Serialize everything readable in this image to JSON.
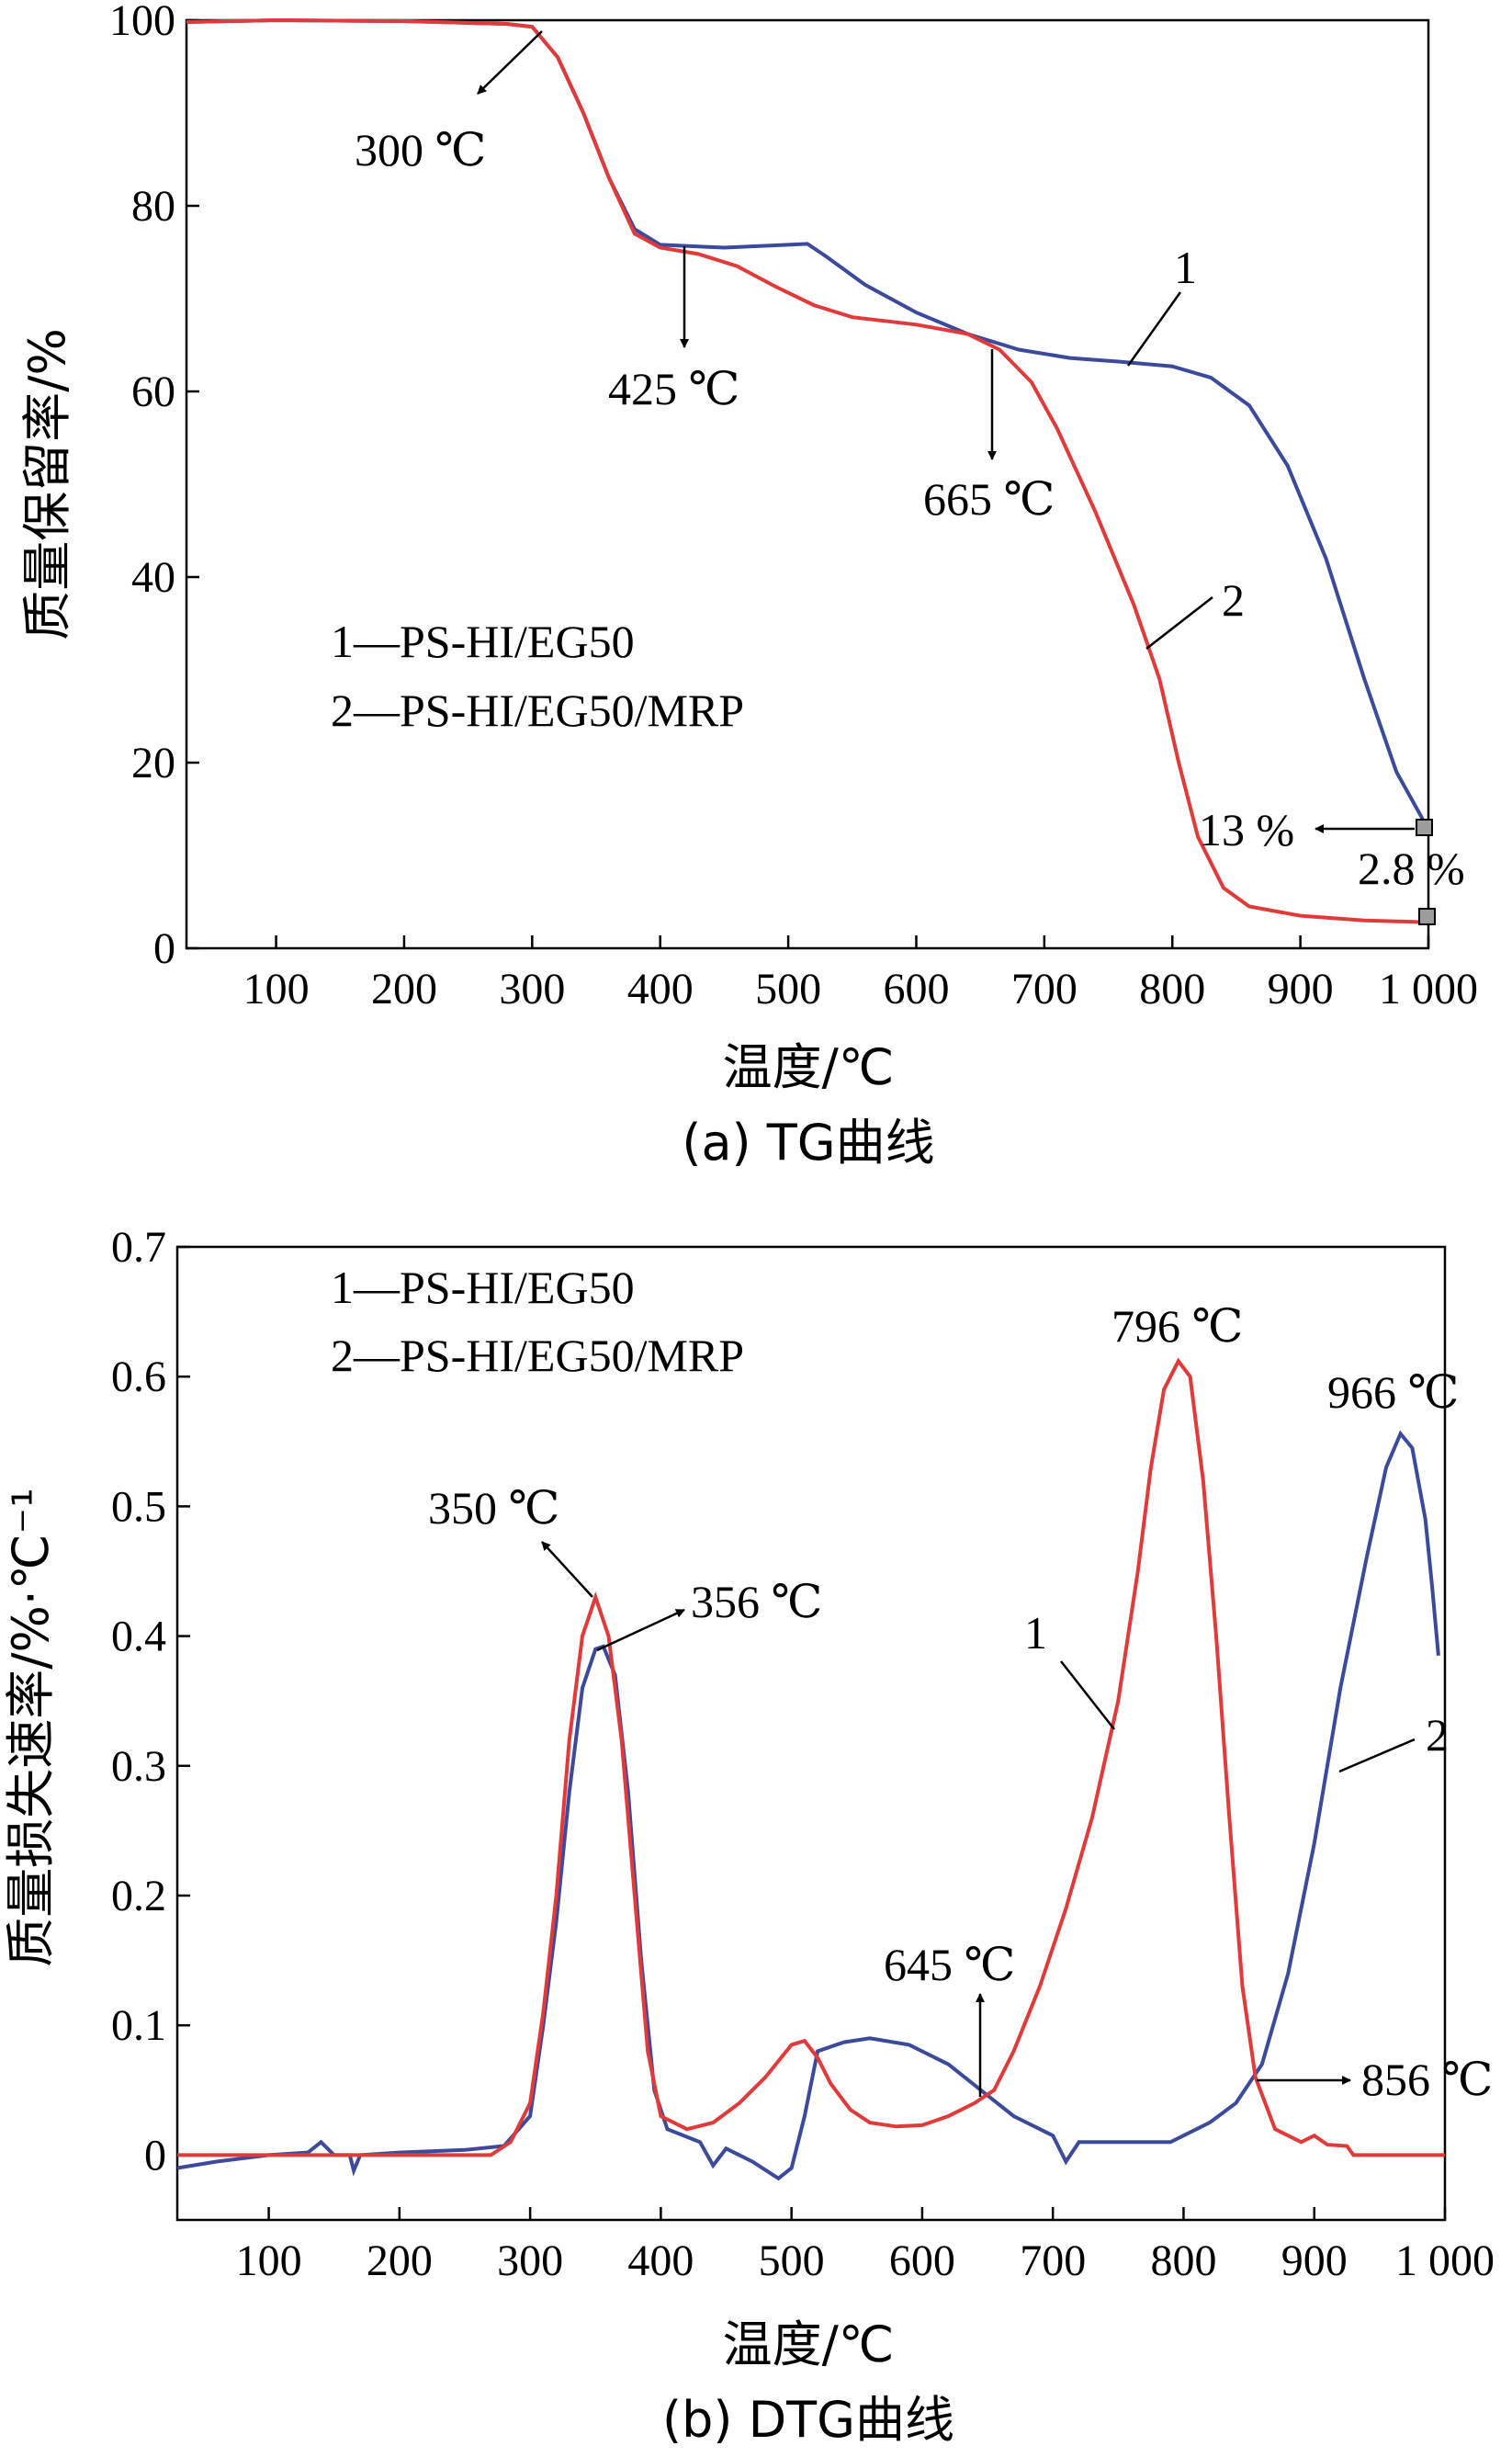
{
  "chart_data": [
    {
      "type": "line",
      "caption": "(a) TG曲线",
      "xlabel": "温度/℃",
      "ylabel": "质量保留率/%",
      "xlim": [
        30,
        1000
      ],
      "ylim": [
        0,
        100
      ],
      "xticks": [
        100,
        200,
        300,
        400,
        500,
        600,
        700,
        800,
        900,
        1000
      ],
      "xtick_labels": [
        "100",
        "200",
        "300",
        "400",
        "500",
        "600",
        "700",
        "800",
        "900",
        "1 000"
      ],
      "yticks": [
        0,
        20,
        40,
        60,
        80,
        100
      ],
      "ytick_labels": [
        "0",
        "20",
        "40",
        "60",
        "80",
        "100"
      ],
      "legend": [
        "1—PS-HI/EG50",
        "2—PS-HI/EG50/MRP"
      ],
      "colors": {
        "series1": "#3b4a9a",
        "series2": "#e03a3a"
      },
      "series": [
        {
          "label": "1",
          "points": [
            [
              30,
              99.8
            ],
            [
              100,
              100
            ],
            [
              200,
              99.9
            ],
            [
              280,
              99.6
            ],
            [
              300,
              99.3
            ],
            [
              320,
              96
            ],
            [
              340,
              90
            ],
            [
              360,
              83
            ],
            [
              380,
              77.5
            ],
            [
              400,
              75.8
            ],
            [
              450,
              75.5
            ],
            [
              500,
              75.8
            ],
            [
              515,
              75.9
            ],
            [
              530,
              74.5
            ],
            [
              560,
              71.5
            ],
            [
              600,
              68.5
            ],
            [
              640,
              66.2
            ],
            [
              680,
              64.5
            ],
            [
              720,
              63.6
            ],
            [
              760,
              63.2
            ],
            [
              800,
              62.7
            ],
            [
              830,
              61.5
            ],
            [
              860,
              58.5
            ],
            [
              890,
              52
            ],
            [
              920,
              42
            ],
            [
              950,
              29
            ],
            [
              975,
              19
            ],
            [
              1000,
              12.8
            ]
          ]
        },
        {
          "label": "2",
          "points": [
            [
              30,
              99.8
            ],
            [
              100,
              100
            ],
            [
              200,
              99.9
            ],
            [
              280,
              99.6
            ],
            [
              300,
              99.3
            ],
            [
              320,
              96
            ],
            [
              340,
              90
            ],
            [
              360,
              83
            ],
            [
              380,
              77
            ],
            [
              400,
              75.5
            ],
            [
              430,
              74.8
            ],
            [
              460,
              73.5
            ],
            [
              490,
              71.3
            ],
            [
              520,
              69.3
            ],
            [
              550,
              68
            ],
            [
              600,
              67.2
            ],
            [
              640,
              66.2
            ],
            [
              665,
              64.5
            ],
            [
              690,
              61
            ],
            [
              710,
              56
            ],
            [
              740,
              47
            ],
            [
              770,
              37
            ],
            [
              790,
              29
            ],
            [
              805,
              20
            ],
            [
              820,
              12
            ],
            [
              840,
              6.5
            ],
            [
              860,
              4.5
            ],
            [
              900,
              3.5
            ],
            [
              950,
              3
            ],
            [
              1000,
              2.8
            ]
          ]
        }
      ],
      "series_labels": [
        "1",
        "2"
      ],
      "annotations": [
        {
          "text": "300 ℃",
          "x": 300,
          "y": 99.3
        },
        {
          "text": "425 ℃",
          "x": 425,
          "y": 75.2
        },
        {
          "text": "665 ℃",
          "x": 665,
          "y": 64.5
        },
        {
          "text": "13 %",
          "x": 1000,
          "y": 13
        },
        {
          "text": "2.8 %",
          "x": 1000,
          "y": 2.8
        }
      ]
    },
    {
      "type": "line",
      "caption": "(b) DTG曲线",
      "xlabel": "温度/℃",
      "ylabel": "质量损失速率/%·℃⁻¹",
      "xlim": [
        30,
        1000
      ],
      "ylim": [
        -0.05,
        0.7
      ],
      "xticks": [
        100,
        200,
        300,
        400,
        500,
        600,
        700,
        800,
        900,
        1000
      ],
      "xtick_labels": [
        "100",
        "200",
        "300",
        "400",
        "500",
        "600",
        "700",
        "800",
        "900",
        "1 000"
      ],
      "yticks": [
        0,
        0.1,
        0.2,
        0.3,
        0.4,
        0.5,
        0.6,
        0.7
      ],
      "ytick_labels": [
        "0",
        "0.1",
        "0.2",
        "0.3",
        "0.4",
        "0.5",
        "0.6",
        "0.7"
      ],
      "legend": [
        "1—PS-HI/EG50",
        "2—PS-HI/EG50/MRP"
      ],
      "colors": {
        "red": "#e03a3a",
        "blue": "#3b4a9a"
      },
      "series": [
        {
          "label": "1",
          "color_key": "red",
          "points": [
            [
              30,
              0
            ],
            [
              100,
              0
            ],
            [
              200,
              0
            ],
            [
              270,
              0
            ],
            [
              285,
              0.01
            ],
            [
              300,
              0.04
            ],
            [
              310,
              0.11
            ],
            [
              320,
              0.2
            ],
            [
              330,
              0.32
            ],
            [
              340,
              0.4
            ],
            [
              350,
              0.43
            ],
            [
              360,
              0.4
            ],
            [
              370,
              0.32
            ],
            [
              380,
              0.2
            ],
            [
              390,
              0.08
            ],
            [
              400,
              0.03
            ],
            [
              420,
              0.02
            ],
            [
              440,
              0.025
            ],
            [
              460,
              0.04
            ],
            [
              480,
              0.06
            ],
            [
              500,
              0.085
            ],
            [
              510,
              0.088
            ],
            [
              520,
              0.075
            ],
            [
              530,
              0.055
            ],
            [
              545,
              0.035
            ],
            [
              560,
              0.025
            ],
            [
              580,
              0.022
            ],
            [
              600,
              0.023
            ],
            [
              620,
              0.03
            ],
            [
              640,
              0.04
            ],
            [
              655,
              0.05
            ],
            [
              670,
              0.08
            ],
            [
              690,
              0.13
            ],
            [
              710,
              0.19
            ],
            [
              730,
              0.26
            ],
            [
              750,
              0.35
            ],
            [
              765,
              0.45
            ],
            [
              775,
              0.53
            ],
            [
              785,
              0.59
            ],
            [
              796,
              0.612
            ],
            [
              805,
              0.6
            ],
            [
              815,
              0.52
            ],
            [
              825,
              0.4
            ],
            [
              835,
              0.26
            ],
            [
              845,
              0.13
            ],
            [
              855,
              0.06
            ],
            [
              870,
              0.02
            ],
            [
              890,
              0.01
            ],
            [
              900,
              0.015
            ],
            [
              910,
              0.008
            ],
            [
              925,
              0.007
            ],
            [
              930,
              0
            ],
            [
              1000,
              0
            ]
          ]
        },
        {
          "label": "2",
          "color_key": "blue",
          "points": [
            [
              30,
              -0.01
            ],
            [
              60,
              -0.005
            ],
            [
              100,
              0
            ],
            [
              130,
              0.002
            ],
            [
              140,
              0.01
            ],
            [
              150,
              0
            ],
            [
              162,
              0
            ],
            [
              165,
              -0.012
            ],
            [
              170,
              0
            ],
            [
              200,
              0.002
            ],
            [
              250,
              0.004
            ],
            [
              280,
              0.007
            ],
            [
              300,
              0.03
            ],
            [
              310,
              0.1
            ],
            [
              320,
              0.18
            ],
            [
              330,
              0.28
            ],
            [
              340,
              0.36
            ],
            [
              350,
              0.39
            ],
            [
              356,
              0.392
            ],
            [
              365,
              0.37
            ],
            [
              375,
              0.28
            ],
            [
              385,
              0.15
            ],
            [
              395,
              0.05
            ],
            [
              405,
              0.02
            ],
            [
              430,
              0.01
            ],
            [
              440,
              -0.008
            ],
            [
              450,
              0.005
            ],
            [
              470,
              -0.005
            ],
            [
              490,
              -0.018
            ],
            [
              500,
              -0.01
            ],
            [
              510,
              0.03
            ],
            [
              520,
              0.08
            ],
            [
              540,
              0.087
            ],
            [
              560,
              0.09
            ],
            [
              590,
              0.085
            ],
            [
              620,
              0.07
            ],
            [
              645,
              0.05
            ],
            [
              670,
              0.03
            ],
            [
              700,
              0.015
            ],
            [
              710,
              -0.005
            ],
            [
              720,
              0.01
            ],
            [
              750,
              0.01
            ],
            [
              790,
              0.01
            ],
            [
              820,
              0.025
            ],
            [
              840,
              0.04
            ],
            [
              860,
              0.07
            ],
            [
              880,
              0.14
            ],
            [
              900,
              0.24
            ],
            [
              920,
              0.36
            ],
            [
              940,
              0.46
            ],
            [
              955,
              0.53
            ],
            [
              966,
              0.556
            ],
            [
              975,
              0.545
            ],
            [
              985,
              0.49
            ],
            [
              990,
              0.44
            ],
            [
              995,
              0.385
            ]
          ]
        }
      ],
      "series_labels": [
        "1",
        "2"
      ],
      "annotations": [
        {
          "text": "350 ℃",
          "x": 350,
          "y": 0.43
        },
        {
          "text": "356 ℃",
          "x": 356,
          "y": 0.392
        },
        {
          "text": "645 ℃",
          "x": 645,
          "y": 0.04
        },
        {
          "text": "796 ℃",
          "x": 796,
          "y": 0.612
        },
        {
          "text": "966 ℃",
          "x": 966,
          "y": 0.556
        },
        {
          "text": "856 ℃",
          "x": 856,
          "y": 0.065
        }
      ]
    }
  ]
}
